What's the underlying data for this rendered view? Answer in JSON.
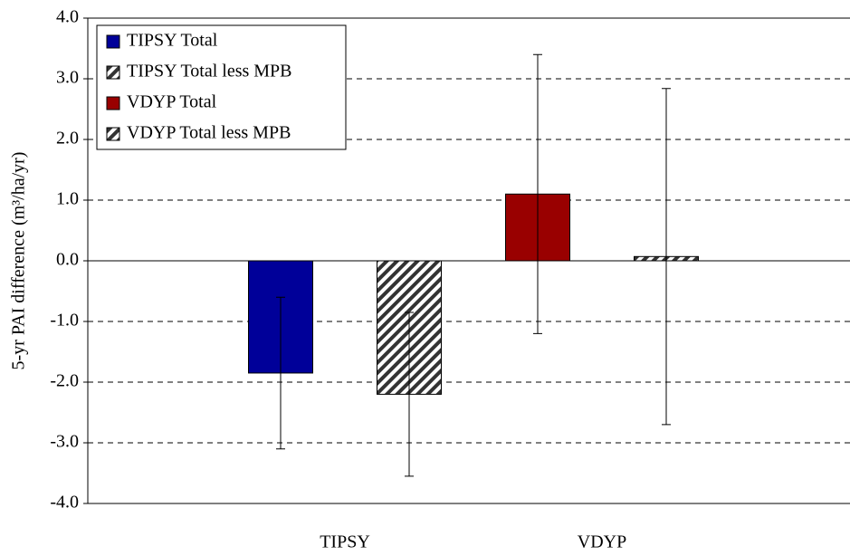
{
  "chart_data": {
    "type": "bar",
    "y_label": "5-yr PAI difference (m³/ha/yr)",
    "categories": [
      "TIPSY",
      "VDYP"
    ],
    "series": [
      {
        "name": "TIPSY Total",
        "color": "#000099",
        "pattern": "solid",
        "values": [
          -1.85,
          null
        ],
        "errors": [
          1.25,
          null
        ]
      },
      {
        "name": "TIPSY Total less MPB",
        "color": "#333333",
        "pattern": "hatch",
        "values": [
          -2.2,
          null
        ],
        "errors": [
          1.35,
          null
        ]
      },
      {
        "name": "VDYP Total",
        "color": "#990000",
        "pattern": "solid",
        "values": [
          null,
          1.1
        ],
        "errors": [
          null,
          2.3
        ]
      },
      {
        "name": "VDYP Total less MPB",
        "color": "#333333",
        "pattern": "hatch",
        "values": [
          null,
          0.07
        ],
        "errors": [
          null,
          2.77
        ]
      }
    ],
    "ylim": [
      -4,
      4
    ],
    "yticks": [
      {
        "value": -4,
        "label": "-4.0"
      },
      {
        "value": -3,
        "label": "-3.0"
      },
      {
        "value": -2,
        "label": "-2.0"
      },
      {
        "value": -1,
        "label": "-1.0"
      },
      {
        "value": 0,
        "label": "0.0"
      },
      {
        "value": 1,
        "label": "1.0"
      },
      {
        "value": 2,
        "label": "2.0"
      },
      {
        "value": 3,
        "label": "3.0"
      },
      {
        "value": 4,
        "label": "4.0"
      }
    ],
    "grid": true,
    "legend": "top-left"
  }
}
